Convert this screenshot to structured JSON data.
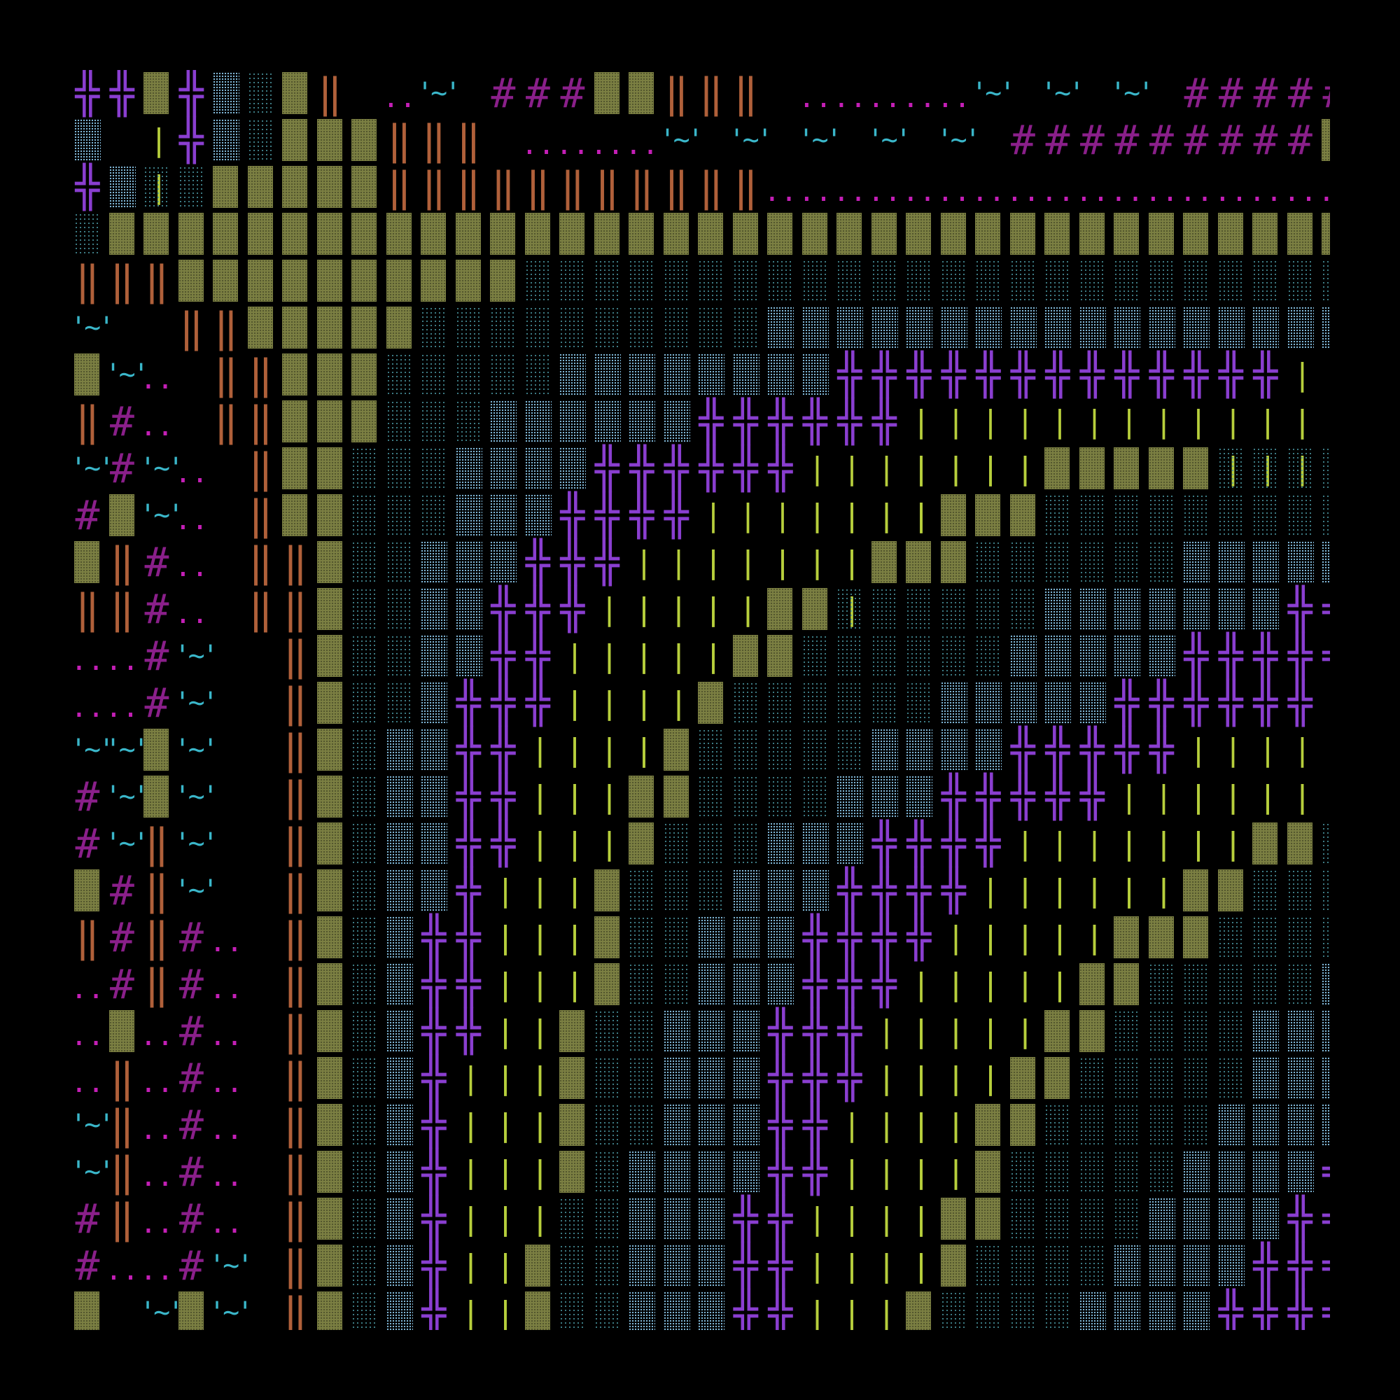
{
  "colors": {
    "background": "#000000",
    "wall_block": "#7b7f42",
    "mesh_dense": "#7fb6d6",
    "mesh_sparse": "#4c9aa5",
    "door_double": "#b0603a",
    "grass_bars": "#b7cf3c",
    "cross": "#8a3ed0",
    "hash": "#8a1f8a",
    "dots": "#c41fb6",
    "water": "#3ab6c9"
  },
  "legend_glyphs": {
    "hash": "#",
    "dots": "..",
    "water": "'~'",
    "door_double": "‖",
    "grass_bars": "| |",
    "cross": "╬"
  },
  "tile_codes": {
    "B": "wall-block",
    "M": "mesh-dense",
    "S": "mesh-sparse",
    "D": "door-double",
    "G": "grass-bars",
    "C": "cross",
    "H": "hash",
    "T": "dots",
    "W": "water",
    ".": "empty"
  },
  "map_rows": [
    "CCBCMSBD.TW.HHHBBDDD.TTTTTW.W.W.HHHHHHB",
    "M.GCMSBBBDDD.TTTTW.W.W.W.W.HHHHHHHHHBBBBBB",
    "CMSSBBBBBDDDDDDDDDDDTTTTTTTTTTTTTTTTTTTT",
    "SBBBBBBBBBBBBBBBBBBBBBBBBBBBBBBBBBBBBBBB",
    "DDDBBBBBBBBBBSSSSSSSSSSSSSSSSSSSSSSSSSSS",
    "W..DDBBBBBSSSSSSSSSSMMMMMMMMMMMMMMMMMMMM",
    "BWT.DDBBBSSSSSMMMMMMMMCCCCCCCCCCCCCGGG",
    "DHT.DDBBBSSSMMMMMMCCCCCCGGGGGGGGGGGGGGGB",
    "WHWT.DBBSSSMMMMCCCCCCGGGGGGGBBBBBSSSSSS",
    "HBWT.DBBSSSMMMCCCCGGGGGGGBBBSSSSSSSSSSM",
    "BDHT.DDBSSMMMCCCGGGGGGGBBBSSSSSSMMMMMMM",
    "DDHT.DDBSSMMCCCGGGGGBBSSSSSSMMMMMMMCCCC",
    "TTHW..DBSSMMCCGGGGGBBSSSSSSMMMMMCCCCCCCGG",
    "TTHW..DBSSMCCCGGGGBSSSSSSMMMMMCCCCCCGGGGG",
    "WWBW..DBSMMCCGGGGBSSSSSMMMMCCCCCGGGGGGGBS",
    "HWBW..DBSMMCCGGGBBSSSSMMMCCCCCGGGGGGGBBBS",
    "HWDW..DBSMMCCGGGBSSSMMMCCCCGGGGGGGBBSSSSS",
    "BHDW..DBSMMCGGGBSSSMMMCCCCGGGGGGBBSSSSSSS",
    "DHDHT.DBSMCCGGGBSSMMMCCCCGGGGGBBBSSSSSMMS",
    "THDHT.DBSMCCGGGBSSMMMCCCGGGGGBBSSSSSMMMMS",
    "TBTHT.DBSMCCGGBSSMMMCCCGGGGGBBSSSSMMMMMCC",
    "TDTHT.DBSMCGGGBSSMMMCCCGGGGBBSSSSSMMMMCCC",
    "WDTHT.DBSMCGGGBSSMMMCCGGGGBBSSSSSMMMMCCCC",
    "WDTHT.DBSMCGGGBSMMMMCCGGGGBSSSSSMMMMCCCCG",
    "HDTHT.DBSMCGGGSSMMMCCGGGGBBSSSSMMMMCCCCCG",
    "HTTHW.DBSMCGGBSSMMMCCGGGGBSSSSMMMMCCCCGGG",
    "B.WBW.DBSMCGGBSSMMMCCGGGBSSSSMMMMCCCCGGGB"
  ]
}
